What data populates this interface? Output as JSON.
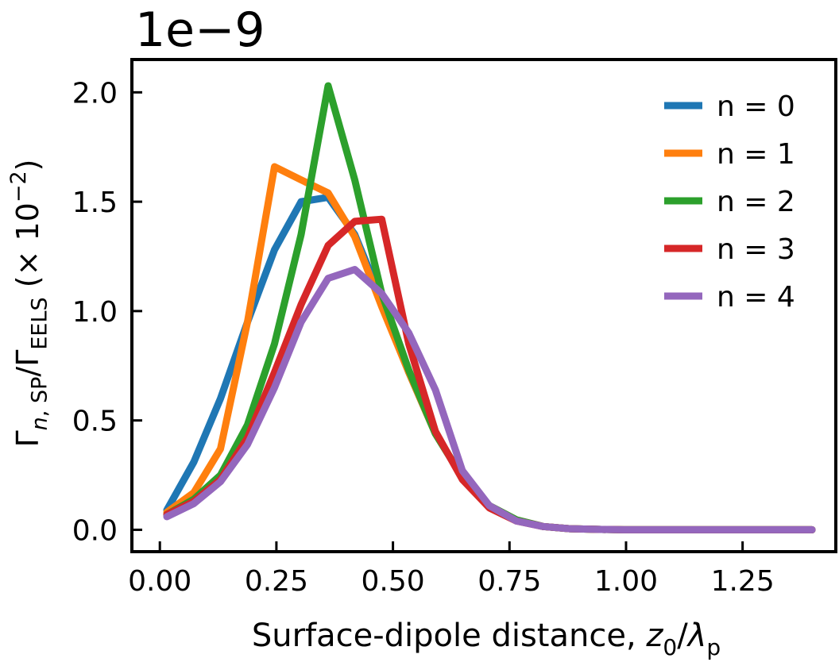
{
  "chart_data": {
    "type": "line",
    "offset_label": "1e−9",
    "ylabel_tex": {
      "parts": [
        {
          "t": "Γ"
        },
        {
          "t": "n",
          "sub": true,
          "italic": true
        },
        {
          "t": ", SP",
          "sub": true
        },
        {
          "t": "/Γ"
        },
        {
          "t": "EELS",
          "sub": true
        },
        {
          "t": " (× 10"
        },
        {
          "t": "−2",
          "sup": true
        },
        {
          "t": ")"
        }
      ]
    },
    "xlabel_parts": [
      {
        "t": "Surface-dipole distance, "
      },
      {
        "t": "z",
        "italic": true
      },
      {
        "t": "0",
        "sub": true
      },
      {
        "t": "/"
      },
      {
        "t": "λ",
        "italic": true
      },
      {
        "t": "p",
        "sub": true
      }
    ],
    "xlim": [
      -0.06,
      1.45
    ],
    "ylim": [
      -0.1,
      2.15
    ],
    "xticks": [
      0.0,
      0.25,
      0.5,
      0.75,
      1.0,
      1.25
    ],
    "xtick_labels": [
      "0.00",
      "0.25",
      "0.50",
      "0.75",
      "1.00",
      "1.25"
    ],
    "yticks": [
      0.0,
      0.5,
      1.0,
      1.5,
      2.0
    ],
    "ytick_labels": [
      "0.0",
      "0.5",
      "1.0",
      "1.5",
      "2.0"
    ],
    "grid": false,
    "legend_position": "top-right",
    "x": [
      0.015,
      0.073,
      0.13,
      0.188,
      0.246,
      0.303,
      0.361,
      0.418,
      0.476,
      0.534,
      0.591,
      0.649,
      0.707,
      0.765,
      0.822,
      0.88,
      0.938,
      0.995,
      1.053,
      1.111,
      1.168,
      1.226,
      1.284,
      1.341,
      1.399
    ],
    "series": [
      {
        "name": "n = 0",
        "color": "#1f77b4",
        "values": [
          0.09,
          0.31,
          0.6,
          0.95,
          1.28,
          1.5,
          1.52,
          1.35,
          1.05,
          0.72,
          0.44,
          0.24,
          0.11,
          0.045,
          0.015,
          0.005,
          0.002,
          0.0,
          0.0,
          0.0,
          0.0,
          0.0,
          0.0,
          0.0,
          0.0
        ]
      },
      {
        "name": "n = 1",
        "color": "#ff7f0e",
        "values": [
          0.08,
          0.17,
          0.37,
          0.95,
          1.66,
          1.6,
          1.54,
          1.34,
          1.02,
          0.72,
          0.44,
          0.24,
          0.11,
          0.045,
          0.015,
          0.005,
          0.002,
          0.0,
          0.0,
          0.0,
          0.0,
          0.0,
          0.0,
          0.0,
          0.0
        ]
      },
      {
        "name": "n = 2",
        "color": "#2ca02c",
        "values": [
          0.07,
          0.14,
          0.25,
          0.48,
          0.85,
          1.35,
          2.03,
          1.6,
          1.08,
          0.73,
          0.44,
          0.24,
          0.11,
          0.045,
          0.015,
          0.005,
          0.002,
          0.0,
          0.0,
          0.0,
          0.0,
          0.0,
          0.0,
          0.0,
          0.0
        ]
      },
      {
        "name": "n = 3",
        "color": "#d62728",
        "values": [
          0.07,
          0.13,
          0.23,
          0.42,
          0.72,
          1.03,
          1.3,
          1.41,
          1.42,
          0.85,
          0.45,
          0.23,
          0.1,
          0.04,
          0.015,
          0.005,
          0.002,
          0.0,
          0.0,
          0.0,
          0.0,
          0.0,
          0.0,
          0.0,
          0.0
        ]
      },
      {
        "name": "n = 4",
        "color": "#9467bd",
        "values": [
          0.06,
          0.12,
          0.22,
          0.39,
          0.65,
          0.95,
          1.15,
          1.19,
          1.08,
          0.9,
          0.64,
          0.27,
          0.11,
          0.04,
          0.015,
          0.005,
          0.002,
          0.0,
          0.0,
          0.0,
          0.0,
          0.0,
          0.0,
          0.0,
          0.0
        ]
      }
    ]
  }
}
